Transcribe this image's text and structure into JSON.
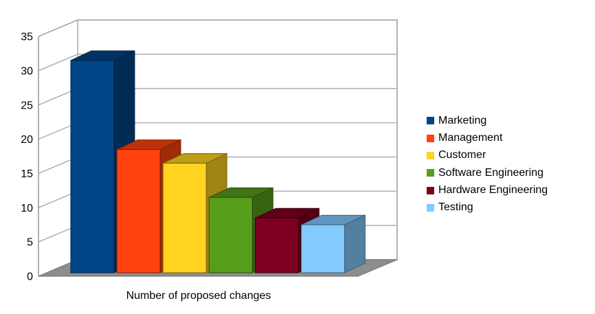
{
  "chart_data": {
    "type": "bar",
    "style": "3d",
    "title": "",
    "xlabel": "Number of proposed changes",
    "ylabel": "",
    "categories": [
      "Marketing",
      "Management",
      "Customer",
      "Software Engineering",
      "Hardware Engineering",
      "Testing"
    ],
    "values": [
      31,
      18,
      16,
      11,
      8,
      7
    ],
    "colors": [
      "#004586",
      "#FF420E",
      "#FFD320",
      "#579D1C",
      "#7E0021",
      "#83CAFF"
    ],
    "ylim": [
      0,
      35
    ],
    "ytick_interval": 5,
    "ytick_labels": [
      "0",
      "5",
      "10",
      "15",
      "20",
      "25",
      "30",
      "35"
    ],
    "grid": true,
    "legend_position": "right",
    "background_color": "#FFFFFF",
    "wall_color": "#FFFFFF",
    "floor_color": "#8D8D8D",
    "gridline_color": "#B3B3B3",
    "axis_line_color": "#9C9C9C",
    "text_color": "#000000"
  }
}
